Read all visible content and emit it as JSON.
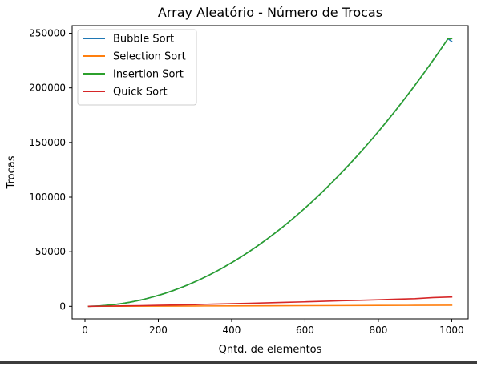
{
  "chart_data": {
    "type": "line",
    "title": "Array Aleatório - Número de Trocas",
    "xlabel": "Qntd. de elementos",
    "ylabel": "Trocas",
    "xlim": [
      -35,
      1045
    ],
    "ylim": [
      -11500,
      257000
    ],
    "xticks": [
      0,
      200,
      400,
      600,
      800,
      1000
    ],
    "yticks": [
      0,
      50000,
      100000,
      150000,
      200000,
      250000
    ],
    "grid": false,
    "legend_position": "top-left",
    "series": [
      {
        "name": "Bubble Sort",
        "color": "#1f77b4",
        "x": [
          10,
          20,
          30,
          40,
          50,
          60,
          70,
          80,
          90,
          100,
          110,
          120,
          130,
          140,
          150,
          160,
          170,
          180,
          190,
          200,
          210,
          220,
          230,
          240,
          250,
          260,
          270,
          280,
          290,
          300,
          310,
          320,
          330,
          340,
          350,
          360,
          370,
          380,
          390,
          400,
          410,
          420,
          430,
          440,
          450,
          460,
          470,
          480,
          490,
          500,
          510,
          520,
          530,
          540,
          550,
          560,
          570,
          580,
          590,
          600,
          610,
          620,
          630,
          640,
          650,
          660,
          670,
          680,
          690,
          700,
          710,
          720,
          730,
          740,
          750,
          760,
          770,
          780,
          790,
          800,
          810,
          820,
          830,
          840,
          850,
          860,
          870,
          880,
          890,
          900,
          910,
          920,
          930,
          940,
          950,
          960,
          970,
          980,
          990,
          1000
        ],
        "y": [
          25,
          100,
          225,
          400,
          625,
          900,
          1225,
          1600,
          2025,
          2500,
          3025,
          3600,
          4225,
          4900,
          5625,
          6400,
          7225,
          8100,
          9025,
          10000,
          11025,
          12100,
          13225,
          14400,
          15625,
          16900,
          18225,
          19600,
          21025,
          22500,
          24025,
          25600,
          27225,
          28900,
          30625,
          32400,
          34225,
          36100,
          38025,
          40000,
          42025,
          44100,
          46225,
          48400,
          50625,
          52900,
          55225,
          57600,
          60025,
          62500,
          65025,
          67600,
          70225,
          72900,
          75625,
          78400,
          81225,
          84100,
          87025,
          90000,
          93025,
          96100,
          99225,
          102400,
          105625,
          108900,
          112225,
          115600,
          119025,
          122500,
          126025,
          129600,
          133225,
          136900,
          140625,
          144400,
          148225,
          152100,
          156025,
          160000,
          164025,
          168100,
          172225,
          176400,
          180625,
          184900,
          189225,
          193600,
          198025,
          202500,
          207025,
          211600,
          216225,
          220900,
          225625,
          230400,
          235225,
          240100,
          245025,
          242500
        ]
      },
      {
        "name": "Selection Sort",
        "color": "#ff7f0e",
        "x": [
          10,
          100,
          200,
          300,
          400,
          500,
          600,
          700,
          800,
          900,
          1000
        ],
        "y": [
          9,
          99,
          199,
          299,
          399,
          499,
          599,
          699,
          799,
          899,
          999
        ]
      },
      {
        "name": "Insertion Sort",
        "color": "#2ca02c",
        "x": [
          10,
          20,
          30,
          40,
          50,
          60,
          70,
          80,
          90,
          100,
          110,
          120,
          130,
          140,
          150,
          160,
          170,
          180,
          190,
          200,
          210,
          220,
          230,
          240,
          250,
          260,
          270,
          280,
          290,
          300,
          310,
          320,
          330,
          340,
          350,
          360,
          370,
          380,
          390,
          400,
          410,
          420,
          430,
          440,
          450,
          460,
          470,
          480,
          490,
          500,
          510,
          520,
          530,
          540,
          550,
          560,
          570,
          580,
          590,
          600,
          610,
          620,
          630,
          640,
          650,
          660,
          670,
          680,
          690,
          700,
          710,
          720,
          730,
          740,
          750,
          760,
          770,
          780,
          790,
          800,
          810,
          820,
          830,
          840,
          850,
          860,
          870,
          880,
          890,
          900,
          910,
          920,
          930,
          940,
          950,
          960,
          970,
          980,
          990,
          1000
        ],
        "y": [
          25,
          100,
          225,
          400,
          625,
          900,
          1225,
          1600,
          2025,
          2500,
          3025,
          3600,
          4225,
          4900,
          5625,
          6400,
          7225,
          8100,
          9025,
          10000,
          11025,
          12100,
          13225,
          14400,
          15625,
          16900,
          18225,
          19600,
          21025,
          22500,
          24025,
          25600,
          27225,
          28900,
          30625,
          32400,
          34225,
          36100,
          38025,
          40000,
          42025,
          44100,
          46225,
          48400,
          50625,
          52900,
          55225,
          57600,
          60025,
          62500,
          65025,
          67600,
          70225,
          72900,
          75625,
          78400,
          81225,
          84100,
          87025,
          90000,
          93025,
          96100,
          99225,
          102400,
          105625,
          108900,
          112225,
          115600,
          119025,
          122500,
          126025,
          129600,
          133225,
          136900,
          140625,
          144400,
          148225,
          152100,
          156025,
          160000,
          164025,
          168100,
          172225,
          176400,
          180625,
          184900,
          189225,
          193600,
          198025,
          202500,
          207025,
          211600,
          216225,
          220900,
          225625,
          230400,
          235225,
          240100,
          245025,
          245000
        ]
      },
      {
        "name": "Quick Sort",
        "color": "#d62728",
        "x": [
          10,
          50,
          100,
          150,
          200,
          250,
          300,
          350,
          400,
          450,
          500,
          550,
          600,
          650,
          700,
          750,
          800,
          850,
          900,
          950,
          1000
        ],
        "y": [
          15,
          150,
          350,
          600,
          900,
          1200,
          1600,
          2000,
          2400,
          2800,
          3200,
          3700,
          4100,
          4600,
          5100,
          5500,
          6000,
          6500,
          7000,
          8000,
          8500
        ]
      }
    ]
  }
}
